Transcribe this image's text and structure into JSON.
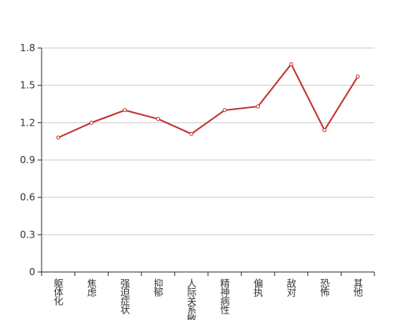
{
  "chart_data": {
    "type": "line",
    "categories": [
      "躯体化",
      "焦虑",
      "强迫症状",
      "抑郁",
      "人际关系敏感",
      "精神病性",
      "偏执",
      "敌对",
      "恐怖",
      "其他"
    ],
    "series": [
      {
        "color": "#c23531",
        "values": [
          1.08,
          1.2,
          1.3,
          1.23,
          1.11,
          1.3,
          1.33,
          1.67,
          1.14,
          1.57
        ]
      }
    ],
    "ylim": [
      0,
      1.8
    ],
    "yticks": [
      0,
      0.3,
      0.6,
      0.9,
      1.2,
      1.5,
      1.8
    ],
    "grid": true
  }
}
